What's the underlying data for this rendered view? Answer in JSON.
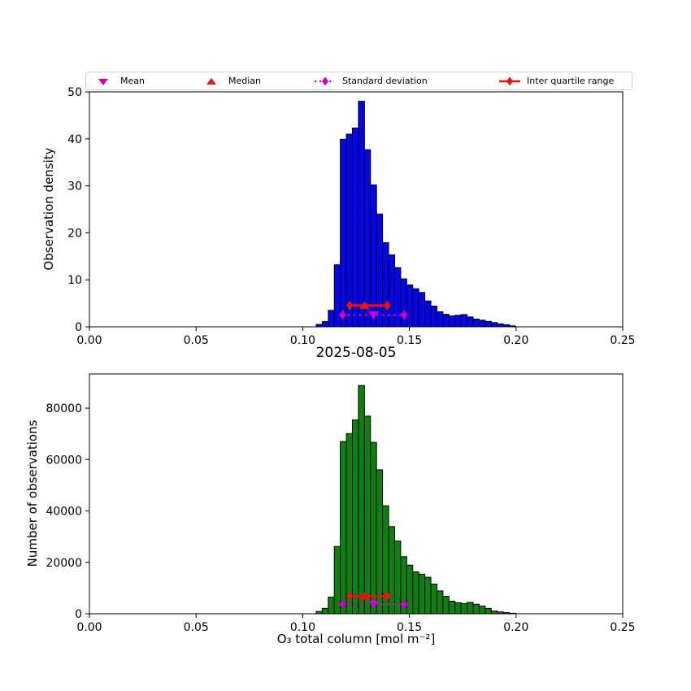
{
  "figure": {
    "title": "2025-08-05",
    "xlabel": "O₃ total column [mol m⁻²]",
    "background": "#ffffff"
  },
  "legend": {
    "border_color": "#d0d0d0",
    "items": [
      {
        "label": "Mean",
        "marker": "triangle-down",
        "color": "#CC00CC",
        "line": "none"
      },
      {
        "label": "Median",
        "marker": "triangle-up",
        "color": "#EE1111",
        "line": "none"
      },
      {
        "label": "Standard deviation",
        "marker": "diamond",
        "color": "#CC00CC",
        "line": "dotted"
      },
      {
        "label": "Inter quartile range",
        "marker": "diamond",
        "color": "#EE1111",
        "line": "solid"
      }
    ]
  },
  "chart_data": [
    {
      "type": "bar",
      "title": "",
      "xlabel": "",
      "ylabel": "Observation density",
      "xlim": [
        0,
        0.25
      ],
      "ylim": [
        0,
        50
      ],
      "xticks": [
        0,
        0.05,
        0.1,
        0.15,
        0.2,
        0.25
      ],
      "xtick_labels": [
        "0.00",
        "0.05",
        "0.10",
        "0.15",
        "0.20",
        "0.25"
      ],
      "yticks": [
        0,
        10,
        20,
        30,
        40,
        50
      ],
      "ytick_labels": [
        "0",
        "10",
        "20",
        "30",
        "40",
        "50"
      ],
      "grid": false,
      "bar_color": "#0505EC",
      "bar_edge_color": "#000000",
      "bin_start": 0.1063,
      "bin_width": 0.00283,
      "heights": [
        0.5,
        1.1,
        3.5,
        13.2,
        39.9,
        41.0,
        42.3,
        48.0,
        37.7,
        30.2,
        24.0,
        17.9,
        15.3,
        12.6,
        10.2,
        8.9,
        8.1,
        7.3,
        5.5,
        4.4,
        3.2,
        2.65,
        2.3,
        2.45,
        2.6,
        2.1,
        1.65,
        1.4,
        1.15,
        0.9,
        0.63,
        0.45,
        0.2
      ],
      "markers": {
        "mean": {
          "x": 0.1332,
          "row_y": 2.5,
          "color": "#CC00CC"
        },
        "median": {
          "x": 0.129,
          "row_y": 4.55,
          "color": "#EE1111"
        },
        "std": {
          "x_low": 0.1187,
          "x_high": 0.1476,
          "row_y": 2.5,
          "color": "#CC00CC"
        },
        "iqr": {
          "x_low": 0.1221,
          "x_high": 0.1396,
          "row_y": 4.55,
          "color": "#EE1111"
        }
      }
    },
    {
      "type": "bar",
      "title": "2025-08-05",
      "xlabel": "O₃ total column [mol m⁻²]",
      "ylabel": "Number of observations",
      "xlim": [
        0,
        0.25
      ],
      "ylim": [
        0,
        93300
      ],
      "xticks": [
        0,
        0.05,
        0.1,
        0.15,
        0.2,
        0.25
      ],
      "xtick_labels": [
        "0.00",
        "0.05",
        "0.10",
        "0.15",
        "0.20",
        "0.25"
      ],
      "yticks": [
        0,
        20000,
        40000,
        60000,
        80000
      ],
      "ytick_labels": [
        "0",
        "20000",
        "40000",
        "60000",
        "80000"
      ],
      "grid": false,
      "bar_color": "#0E800E",
      "bar_edge_color": "#000000",
      "bin_start": 0.1063,
      "bin_width": 0.00283,
      "heights": [
        900,
        2100,
        6500,
        26200,
        67000,
        70100,
        75400,
        88800,
        76900,
        66700,
        56000,
        42000,
        33900,
        28300,
        22200,
        18900,
        16300,
        15400,
        14200,
        11550,
        8900,
        6800,
        4900,
        4300,
        4000,
        4400,
        3700,
        3000,
        2100,
        1050,
        735,
        450,
        200
      ],
      "markers": {
        "mean": {
          "x": 0.1332,
          "row_y": 3700,
          "color": "#CC00CC"
        },
        "median": {
          "x": 0.129,
          "row_y": 6860,
          "color": "#EE1111"
        },
        "std": {
          "x_low": 0.1187,
          "x_high": 0.1476,
          "row_y": 3700,
          "color": "#CC00CC"
        },
        "iqr": {
          "x_low": 0.1221,
          "x_high": 0.1396,
          "row_y": 6860,
          "color": "#EE1111"
        }
      }
    }
  ]
}
